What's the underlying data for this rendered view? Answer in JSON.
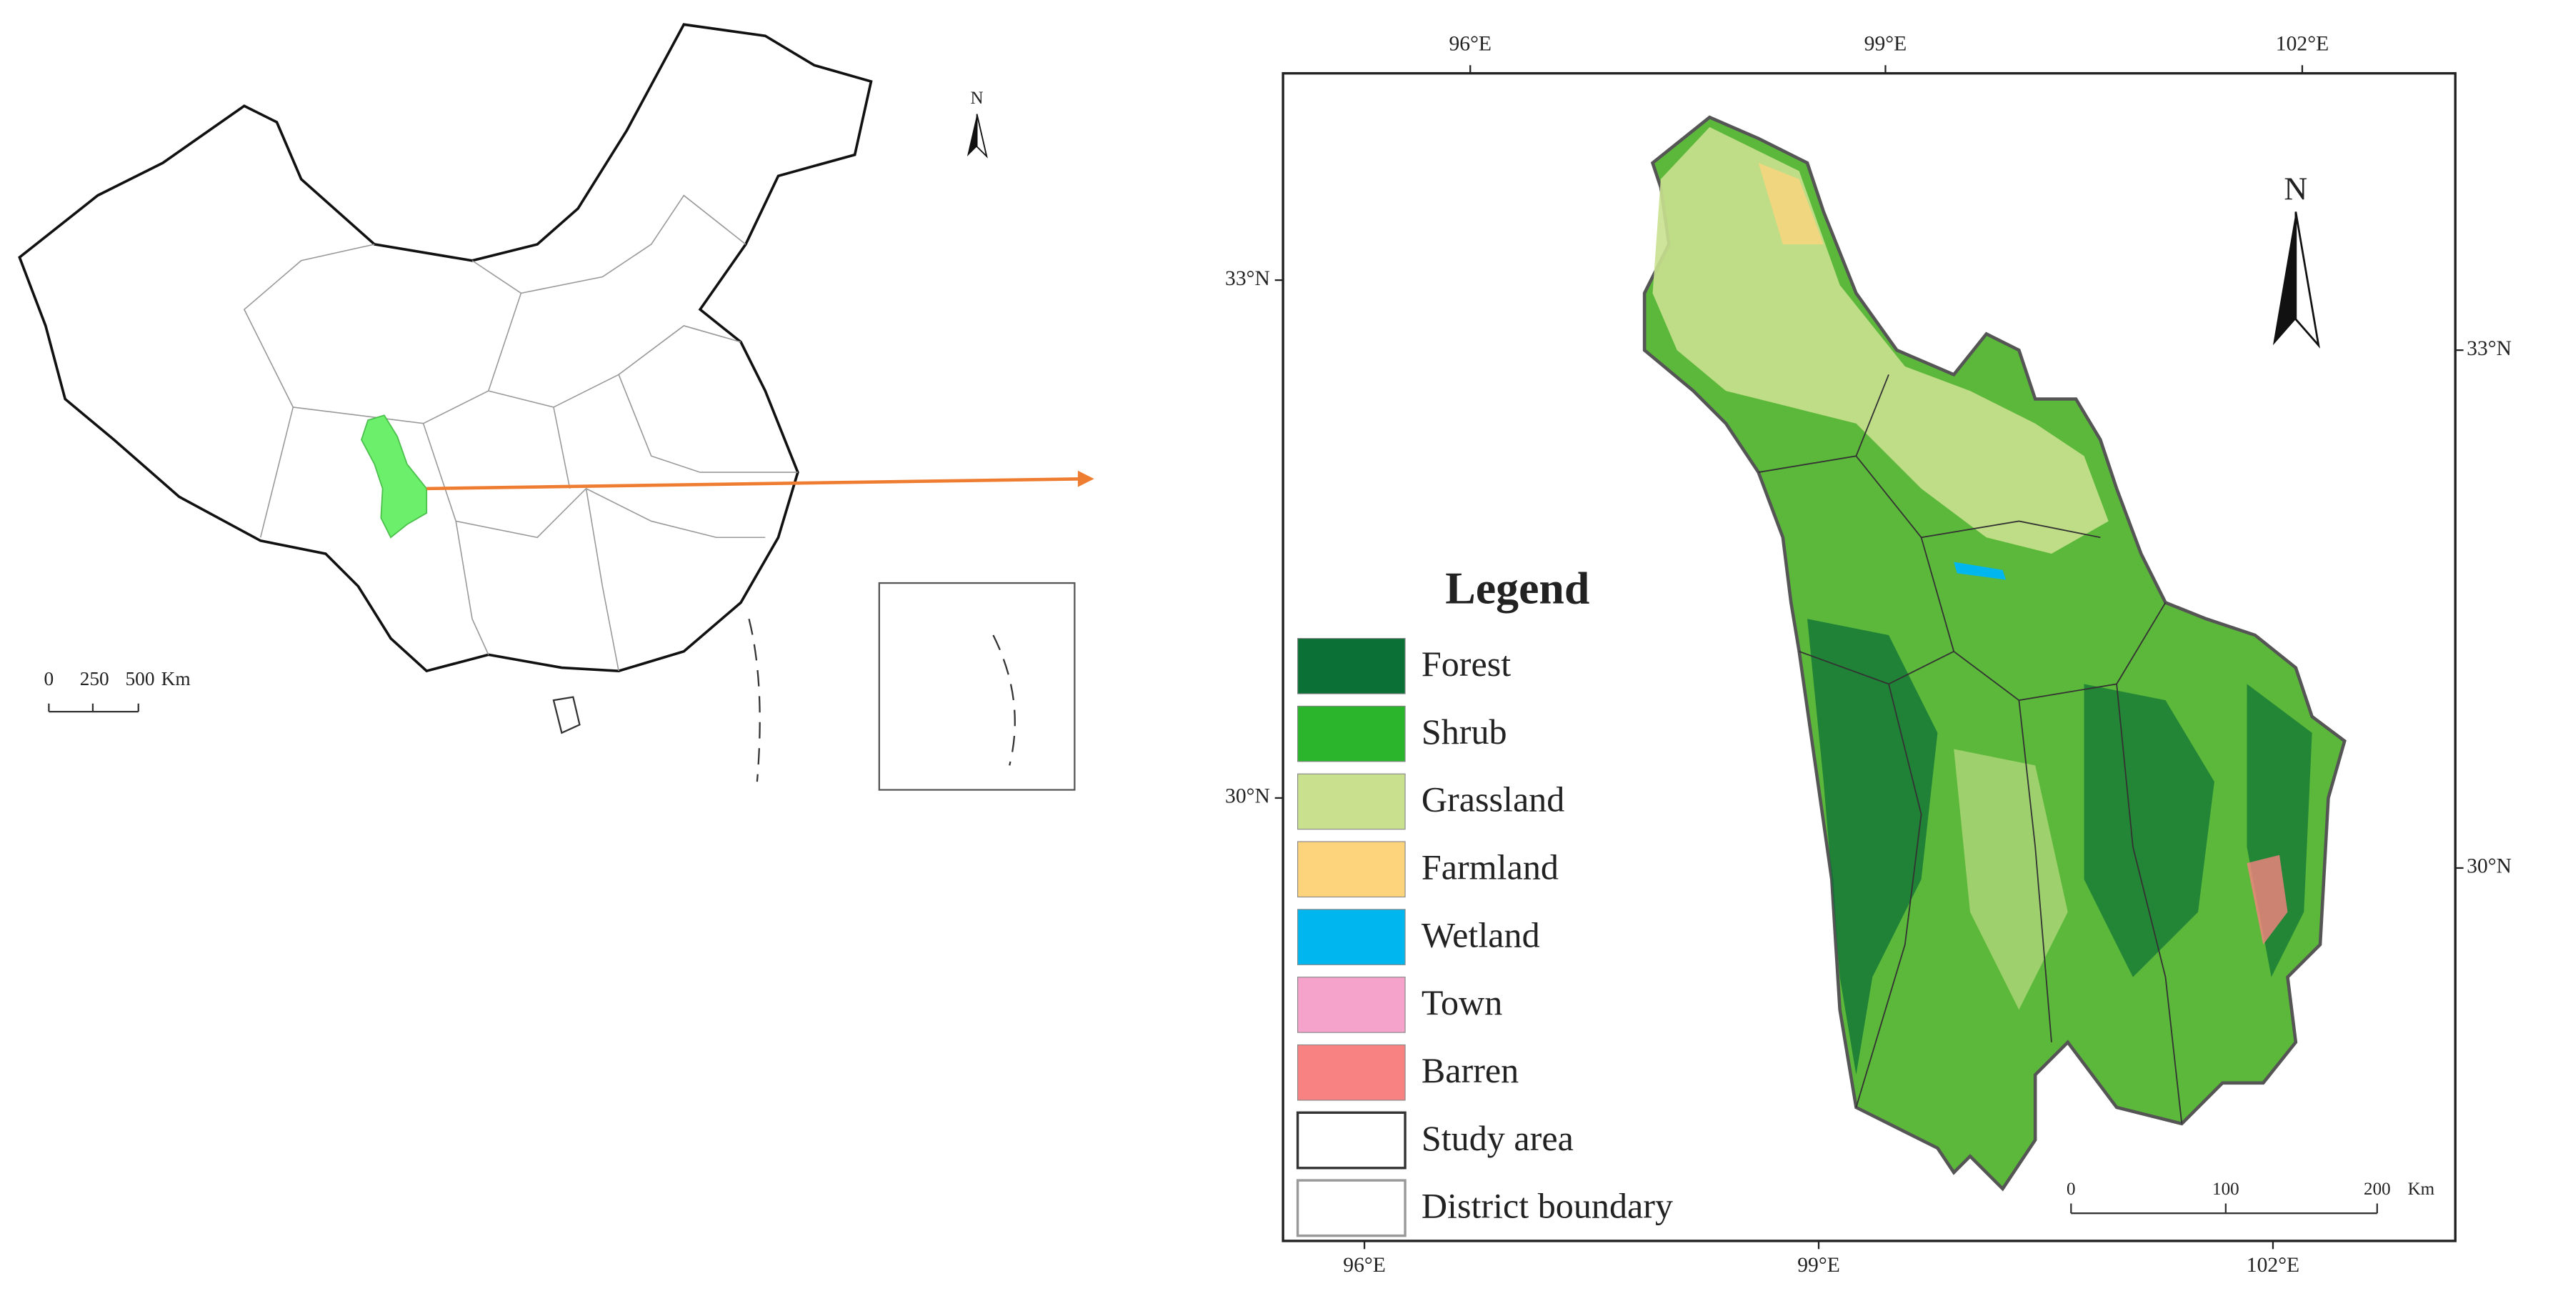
{
  "inset_map": {
    "north_label": "N",
    "scale_labels": [
      "0",
      "250",
      "500",
      "Km"
    ]
  },
  "main_map": {
    "top_lon_labels": [
      "96°E",
      "99°E",
      "102°E"
    ],
    "bottom_lon_labels": [
      "96°E",
      "99°E",
      "102°E"
    ],
    "left_lat_labels": [
      "33°N",
      "30°N"
    ],
    "right_lat_labels": [
      "33°N",
      "30°N"
    ],
    "north_label": "N",
    "legend": {
      "title": "Legend",
      "items": [
        {
          "label": "Forest",
          "color": "#0b7035"
        },
        {
          "label": "Shrub",
          "color": "#2ab52c"
        },
        {
          "label": "Grassland",
          "color": "#c9e18f"
        },
        {
          "label": "Farmland",
          "color": "#fdd47c"
        },
        {
          "label": "Wetland",
          "color": "#00b6ee"
        },
        {
          "label": "Town",
          "color": "#f5a3cb"
        },
        {
          "label": "Barren",
          "color": "#f88282"
        },
        {
          "label": "Study area",
          "color": "#ffffff"
        },
        {
          "label": "District boundary",
          "color": "#ffffff"
        }
      ]
    },
    "scale_labels": [
      "0",
      "100",
      "200",
      "Km"
    ]
  }
}
